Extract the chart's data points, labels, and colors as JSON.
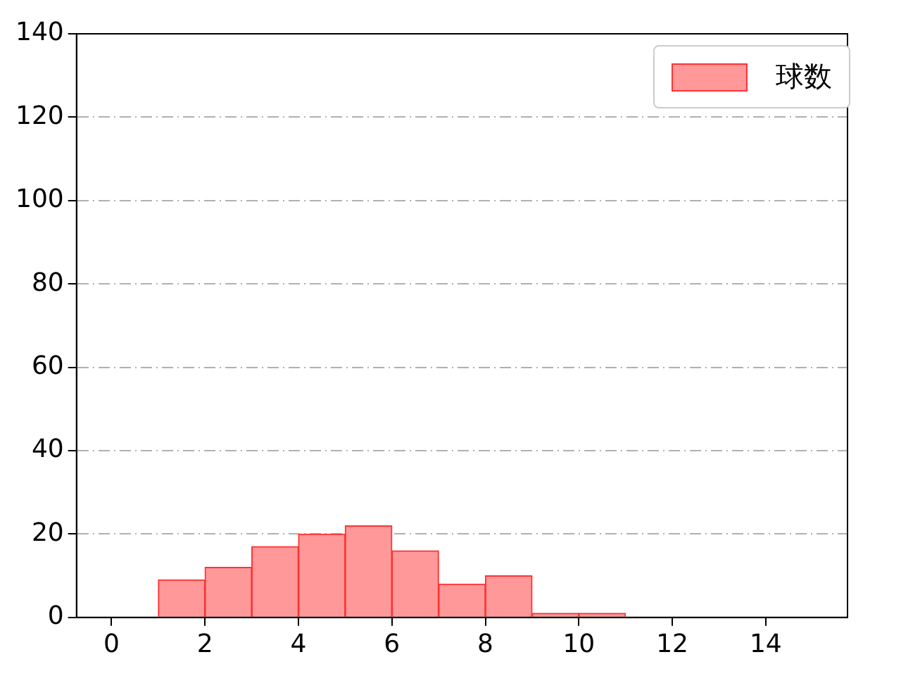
{
  "chart_data": {
    "type": "histogram",
    "bins": [
      0,
      1,
      2,
      3,
      4,
      5,
      6,
      7,
      8,
      9,
      10,
      11,
      12,
      13,
      14,
      15
    ],
    "series": [
      {
        "name": "球数",
        "color": "#ff9999",
        "values": [
          0,
          9,
          12,
          17,
          20,
          22,
          16,
          8,
          10,
          1,
          1,
          0,
          0,
          0,
          0
        ]
      }
    ],
    "xlim": [
      -0.75,
      15.75
    ],
    "xticks": [
      0,
      2,
      4,
      6,
      8,
      10,
      12,
      14
    ],
    "ylim": [
      0,
      140
    ],
    "yticks": [
      0,
      20,
      40,
      60,
      80,
      100,
      120,
      140
    ],
    "grid": "y",
    "legend": "top right"
  }
}
